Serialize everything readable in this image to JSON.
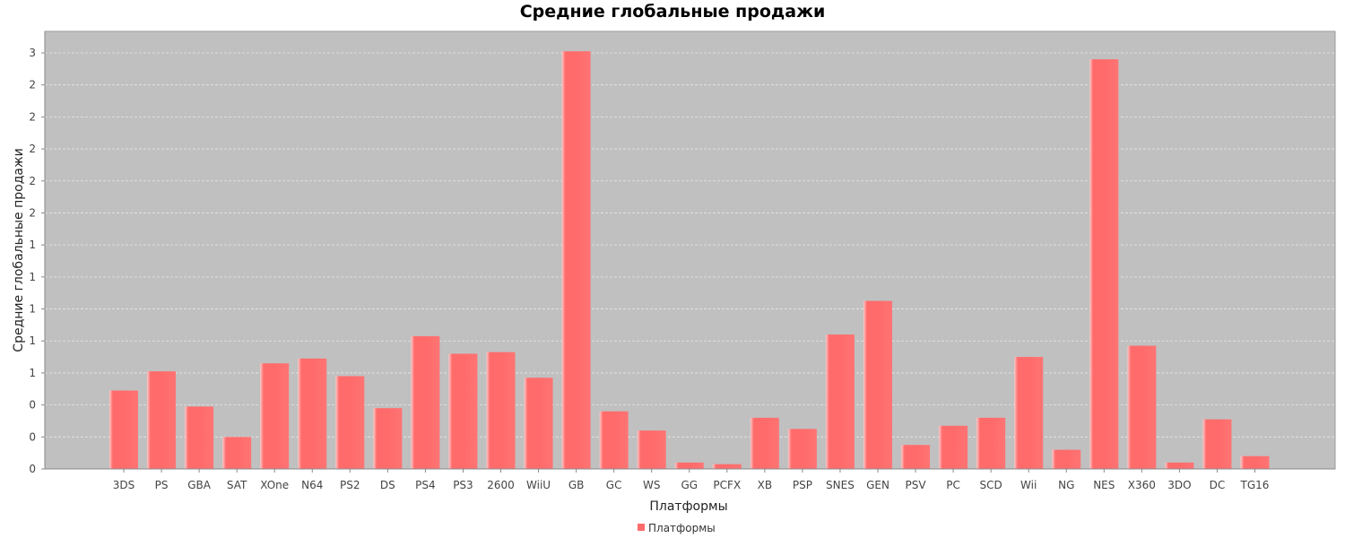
{
  "chart_data": {
    "type": "bar",
    "title": "Средние глобальные продажи",
    "xlabel": "Платформы",
    "ylabel": "Средние глобальные продажи",
    "legend": {
      "labels": [
        "Платформы"
      ],
      "placement": "bottom-center"
    },
    "colors": {
      "bar": "#ff6b6b",
      "bar_highlight": "#ffc8c8",
      "plot_bg": "#c0c0c0",
      "grid": "#e6e6e6"
    },
    "grid": true,
    "ylim": [
      0,
      2.6
    ],
    "y_ticks": [
      {
        "value": 0.0,
        "label": "0"
      },
      {
        "value": 0.2,
        "label": "0"
      },
      {
        "value": 0.4,
        "label": "0"
      },
      {
        "value": 0.6,
        "label": "1"
      },
      {
        "value": 0.8,
        "label": "1"
      },
      {
        "value": 1.0,
        "label": "1"
      },
      {
        "value": 1.2,
        "label": "1"
      },
      {
        "value": 1.4,
        "label": "1"
      },
      {
        "value": 1.6,
        "label": "2"
      },
      {
        "value": 1.8,
        "label": "2"
      },
      {
        "value": 2.0,
        "label": "2"
      },
      {
        "value": 2.2,
        "label": "2"
      },
      {
        "value": 2.4,
        "label": "2"
      },
      {
        "value": 2.6,
        "label": "3"
      }
    ],
    "categories": [
      "3DS",
      "PS",
      "GBA",
      "SAT",
      "XOne",
      "N64",
      "PS2",
      "DS",
      "PS4",
      "PS3",
      "2600",
      "WiiU",
      "GB",
      "GC",
      "WS",
      "GG",
      "PCFX",
      "XB",
      "PSP",
      "SNES",
      "GEN",
      "PSV",
      "PC",
      "SCD",
      "Wii",
      "NG",
      "NES",
      "X360",
      "3DO",
      "DC",
      "TG16"
    ],
    "values": [
      0.49,
      0.61,
      0.39,
      0.2,
      0.66,
      0.69,
      0.58,
      0.38,
      0.83,
      0.72,
      0.73,
      0.57,
      2.61,
      0.36,
      0.24,
      0.04,
      0.03,
      0.32,
      0.25,
      0.84,
      1.05,
      0.15,
      0.27,
      0.32,
      0.7,
      0.12,
      2.56,
      0.77,
      0.04,
      0.31,
      0.08
    ]
  }
}
